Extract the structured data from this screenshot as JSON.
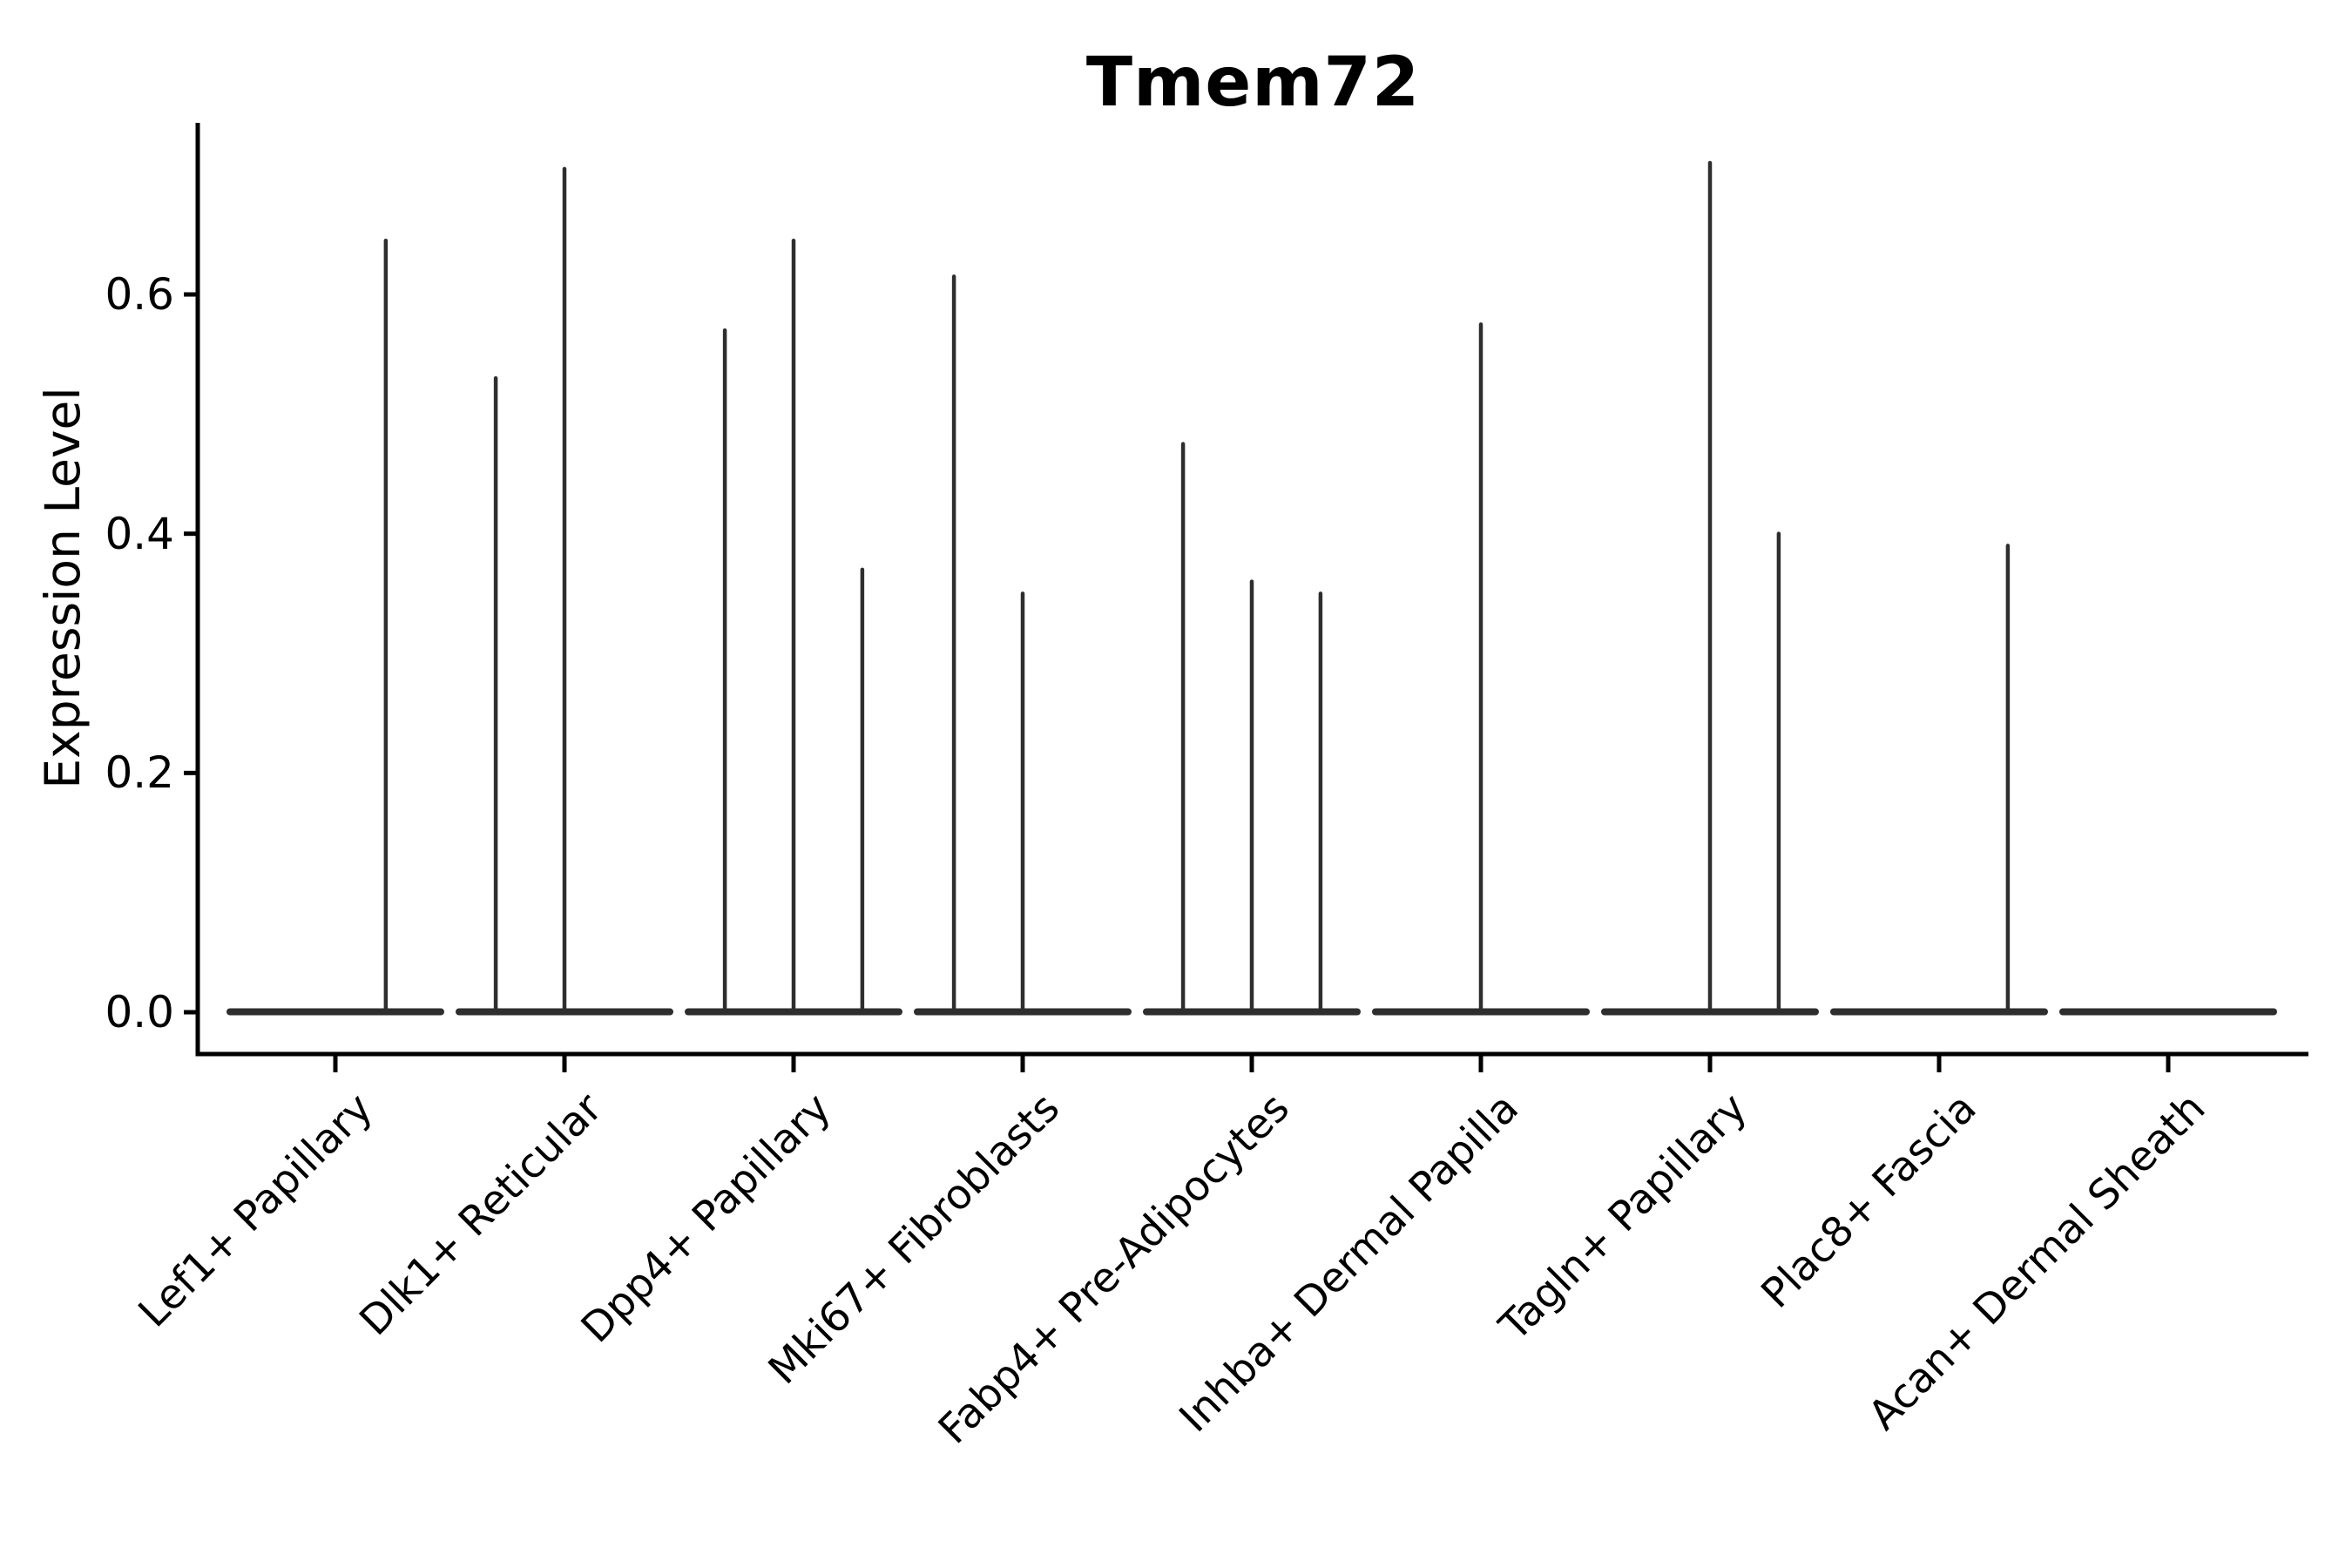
{
  "figure": {
    "title": "Tmem72",
    "ylabel": "Expression Level"
  },
  "colors": {
    "background": "#ffffff",
    "axis": "#000000",
    "text": "#000000",
    "violin": "#2e2e2e"
  },
  "chart_data": {
    "type": "violin",
    "title": "Tmem72",
    "xlabel": "",
    "ylabel": "Expression Level",
    "grid": false,
    "legend": false,
    "ylim": [
      -0.035,
      0.744
    ],
    "y_ticks": [
      "0.0",
      "0.2",
      "0.4",
      "0.6"
    ],
    "y_tick_values": [
      0.0,
      0.2,
      0.4,
      0.6
    ],
    "categories": [
      "Lef1+ Papillary",
      "Dlk1+ Reticular",
      "Dpp4+ Papillary",
      "Mki67+ Fibroblasts",
      "Fabp4+ Pre-Adipocytes",
      "Inhba+ Dermal Papilla",
      "Tagln+ Papillary",
      "Plac8+ Fascia",
      "Acan+ Dermal Sheath"
    ],
    "description": "Violin plot of Tmem72 expression; each category shows a flat near-zero density with thin spikes at the expression values of the few positive cells. Spike offsets are fractions of category spacing from the category center; values are expression-level heights.",
    "series": [
      {
        "name": "Lef1+ Papillary",
        "baseline_value": 0.0,
        "spikes": [
          {
            "x_offset": 0.22,
            "value": 0.645
          }
        ]
      },
      {
        "name": "Dlk1+ Reticular",
        "baseline_value": 0.0,
        "spikes": [
          {
            "x_offset": -0.3,
            "value": 0.53
          },
          {
            "x_offset": 0.0,
            "value": 0.705
          }
        ]
      },
      {
        "name": "Dpp4+ Papillary",
        "baseline_value": 0.0,
        "spikes": [
          {
            "x_offset": -0.3,
            "value": 0.57
          },
          {
            "x_offset": 0.0,
            "value": 0.645
          },
          {
            "x_offset": 0.3,
            "value": 0.37
          }
        ]
      },
      {
        "name": "Mki67+ Fibroblasts",
        "baseline_value": 0.0,
        "spikes": [
          {
            "x_offset": -0.3,
            "value": 0.615
          },
          {
            "x_offset": 0.0,
            "value": 0.35
          }
        ]
      },
      {
        "name": "Fabp4+ Pre-Adipocytes",
        "baseline_value": 0.0,
        "spikes": [
          {
            "x_offset": -0.3,
            "value": 0.475
          },
          {
            "x_offset": 0.0,
            "value": 0.36
          },
          {
            "x_offset": 0.3,
            "value": 0.35
          }
        ]
      },
      {
        "name": "Inhba+ Dermal Papilla",
        "baseline_value": 0.0,
        "spikes": [
          {
            "x_offset": 0.0,
            "value": 0.575
          }
        ]
      },
      {
        "name": "Tagln+ Papillary",
        "baseline_value": 0.0,
        "spikes": [
          {
            "x_offset": 0.0,
            "value": 0.71
          },
          {
            "x_offset": 0.3,
            "value": 0.4
          }
        ]
      },
      {
        "name": "Plac8+ Fascia",
        "baseline_value": 0.0,
        "spikes": [
          {
            "x_offset": 0.3,
            "value": 0.39
          }
        ]
      },
      {
        "name": "Acan+ Dermal Sheath",
        "baseline_value": 0.0,
        "spikes": []
      }
    ]
  }
}
